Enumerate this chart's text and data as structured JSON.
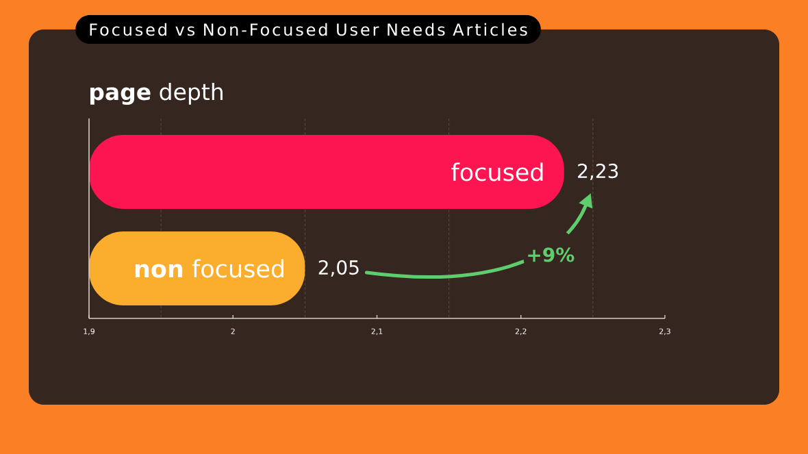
{
  "chart_data": {
    "type": "bar",
    "orientation": "horizontal",
    "title": "Focused vs Non-Focused User Needs Articles",
    "subtitle": "**page** depth",
    "categories": [
      "focused",
      "**non** focused"
    ],
    "values": [
      2.23,
      2.05
    ],
    "colors": [
      "#fc1551",
      "#fbad2e"
    ],
    "value_labels": [
      "2,23",
      "2,05"
    ],
    "xlim": [
      1.9,
      2.3
    ],
    "xticks": [
      {
        "value": 1.9,
        "label": "1,9"
      },
      2,
      {
        "value": 2.1,
        "label": "2,1"
      },
      {
        "value": 2.2,
        "label": "2,2"
      },
      {
        "value": 2.3,
        "label": "2,3"
      }
    ],
    "ref_lines": [
      {
        "axis": "x",
        "value": 1.95,
        "color": "#5e4f46",
        "line_style": "dashed"
      },
      {
        "axis": "x",
        "value": 2.05,
        "color": "#5e4f46",
        "line_style": "dashed"
      },
      {
        "axis": "x",
        "value": 2.15,
        "color": "#5e4f46",
        "line_style": "dashed"
      },
      {
        "axis": "x",
        "value": 2.25,
        "color": "#5e4f46",
        "line_style": "dashed"
      }
    ],
    "annotations": [
      "+9%"
    ]
  }
}
